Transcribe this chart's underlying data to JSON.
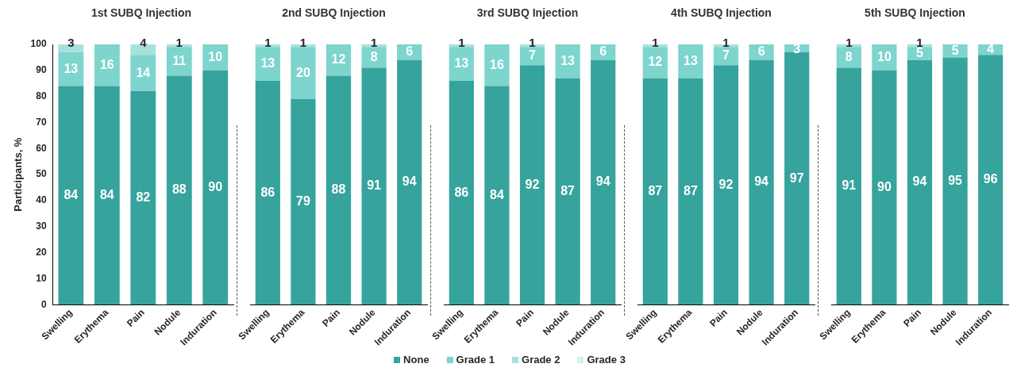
{
  "chart_data": [
    {
      "type": "bar",
      "title": "1st SUBQ Injection",
      "ylabel": "Participants, %",
      "categories": [
        "Swelling",
        "Erythema",
        "Pain",
        "Nodule",
        "Induration"
      ],
      "stacked": true,
      "ylim": [
        0,
        100
      ],
      "yticks": [
        0,
        10,
        20,
        30,
        40,
        50,
        60,
        70,
        80,
        90,
        100
      ],
      "grid": false,
      "data_labels": true,
      "legend": "bottom",
      "series": [
        {
          "name": "None",
          "color": "#36a39d",
          "values": [
            84,
            84,
            82,
            88,
            90
          ]
        },
        {
          "name": "Grade 1",
          "color": "#7dd5cd",
          "values": [
            13,
            16,
            14,
            11,
            10
          ]
        },
        {
          "name": "Grade 2",
          "color": "#a6e1dc",
          "values": [
            3,
            null,
            4,
            1,
            null
          ]
        },
        {
          "name": "Grade 3",
          "color": "#d5f1ee",
          "values": [
            null,
            null,
            null,
            null,
            null
          ]
        }
      ]
    },
    {
      "type": "bar",
      "title": "2nd SUBQ Injection",
      "categories": [
        "Swelling",
        "Erythema",
        "Pain",
        "Nodule",
        "Induration"
      ],
      "stacked": true,
      "ylim": [
        0,
        100
      ],
      "tick_labels": "x",
      "grid": false,
      "data_labels": true,
      "series": [
        {
          "color": "#36a39d",
          "values": [
            86,
            79,
            88,
            91,
            94
          ]
        },
        {
          "color": "#7dd5cd",
          "values": [
            13,
            20,
            12,
            8,
            6
          ]
        },
        {
          "color": "#a6e1dc",
          "values": [
            1,
            1,
            null,
            1,
            null
          ]
        },
        {
          "color": "#d5f1ee",
          "values": [
            null,
            null,
            null,
            null,
            null
          ]
        }
      ]
    },
    {
      "type": "bar",
      "title": "3rd SUBQ Injection",
      "categories": [
        "Swelling",
        "Erythema",
        "Pain",
        "Nodule",
        "Induration"
      ],
      "stacked": true,
      "ylim": [
        0,
        100
      ],
      "tick_labels": "x",
      "grid": false,
      "data_labels": true,
      "series": [
        {
          "color": "#36a39d",
          "values": [
            86,
            84,
            92,
            87,
            94
          ]
        },
        {
          "color": "#7dd5cd",
          "values": [
            13,
            16,
            7,
            13,
            6
          ]
        },
        {
          "color": "#a6e1dc",
          "values": [
            1,
            null,
            1,
            null,
            null
          ]
        },
        {
          "color": "#d5f1ee",
          "values": [
            null,
            null,
            null,
            null,
            null
          ]
        }
      ]
    },
    {
      "type": "bar",
      "title": "4th SUBQ Injection",
      "categories": [
        "Swelling",
        "Erythema",
        "Pain",
        "Nodule",
        "Induration"
      ],
      "stacked": true,
      "ylim": [
        0,
        100
      ],
      "tick_labels": "x",
      "grid": false,
      "data_labels": true,
      "series": [
        {
          "color": "#36a39d",
          "values": [
            87,
            87,
            92,
            94,
            97
          ]
        },
        {
          "color": "#7dd5cd",
          "values": [
            12,
            13,
            7,
            6,
            3
          ]
        },
        {
          "color": "#a6e1dc",
          "values": [
            1,
            null,
            1,
            null,
            null
          ]
        },
        {
          "color": "#d5f1ee",
          "values": [
            null,
            null,
            null,
            null,
            null
          ]
        }
      ]
    },
    {
      "type": "bar",
      "title": "5th SUBQ Injection",
      "categories": [
        "Swelling",
        "Erythema",
        "Pain",
        "Nodule",
        "Induration"
      ],
      "stacked": true,
      "ylim": [
        0,
        100
      ],
      "tick_labels": "x",
      "grid": false,
      "data_labels": true,
      "series": [
        {
          "color": "#36a39d",
          "values": [
            91,
            90,
            94,
            95,
            96
          ]
        },
        {
          "color": "#7dd5cd",
          "values": [
            8,
            10,
            5,
            5,
            4
          ]
        },
        {
          "color": "#a6e1dc",
          "values": [
            1,
            null,
            1,
            null,
            null
          ]
        },
        {
          "color": "#d5f1ee",
          "values": [
            null,
            null,
            null,
            null,
            null
          ]
        }
      ]
    }
  ]
}
